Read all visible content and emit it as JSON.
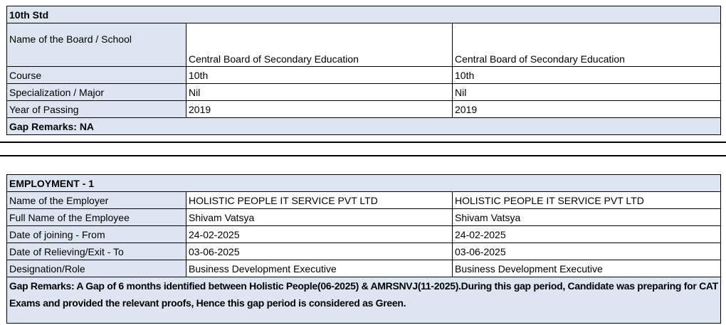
{
  "education": {
    "title": "10th Std",
    "rows": [
      {
        "label": "Name of the Board / School",
        "value1": "Central Board of Secondary Education",
        "value2": "Central Board of Secondary Education"
      },
      {
        "label": "Course",
        "value1": "10th",
        "value2": "10th"
      },
      {
        "label": "Specialization / Major",
        "value1": "Nil",
        "value2": "Nil"
      },
      {
        "label": "Year of Passing",
        "value1": "2019",
        "value2": "2019"
      }
    ],
    "gap_remarks": "Gap Remarks: NA"
  },
  "employment": {
    "title": "EMPLOYMENT - 1",
    "rows": [
      {
        "label": "Name of the Employer",
        "value1": "HOLISTIC PEOPLE IT SERVICE PVT LTD",
        "value2": "HOLISTIC PEOPLE IT SERVICE PVT LTD"
      },
      {
        "label": "Full Name of the Employee",
        "value1": "Shivam Vatsya",
        "value2": "Shivam Vatsya"
      },
      {
        "label": "Date of joining - From",
        "value1": "24-02-2025",
        "value2": "24-02-2025"
      },
      {
        "label": "Date of Relieving/Exit - To",
        "value1": "03-06-2025",
        "value2": "03-06-2025"
      },
      {
        "label": "Designation/Role",
        "value1": "Business Development Executive",
        "value2": "Business Development Executive"
      }
    ],
    "gap_remarks": "Gap Remarks: A Gap of 6 months identified between Holistic People(06-2025) & AMRSNVJ(11-2025).During this gap period, Candidate was preparing for CAT Exams and provided the relevant proofs, Hence this gap period is considered as Green."
  }
}
